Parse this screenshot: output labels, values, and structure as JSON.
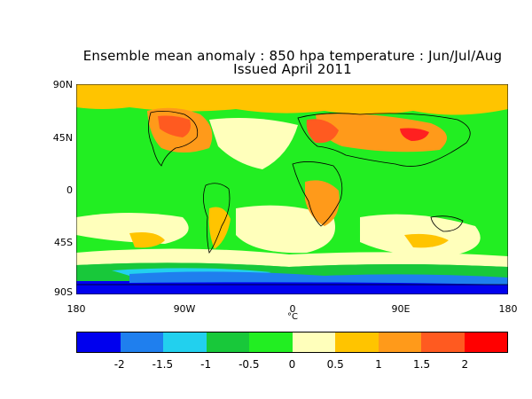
{
  "title": {
    "line1": "Ensemble mean anomaly : 850 hpa temperature : Jun/Jul/Aug",
    "line2": "Issued April 2011"
  },
  "axes": {
    "y_labels": [
      "90N",
      "45N",
      "0",
      "45S",
      "90S"
    ],
    "x_labels": [
      "180",
      "90W",
      "0",
      "90E",
      "180"
    ],
    "unit": "°C"
  },
  "colorbar": {
    "colors": [
      "#0000ee",
      "#1f7fee",
      "#22d0ee",
      "#18c83a",
      "#22ee22",
      "#ffffbb",
      "#ffc400",
      "#ff9a1a",
      "#ff5a20",
      "#ff0000"
    ],
    "labels": [
      "-2",
      "-1.5",
      "-1",
      "-0.5",
      "0",
      "0.5",
      "1",
      "1.5",
      "2"
    ]
  }
}
